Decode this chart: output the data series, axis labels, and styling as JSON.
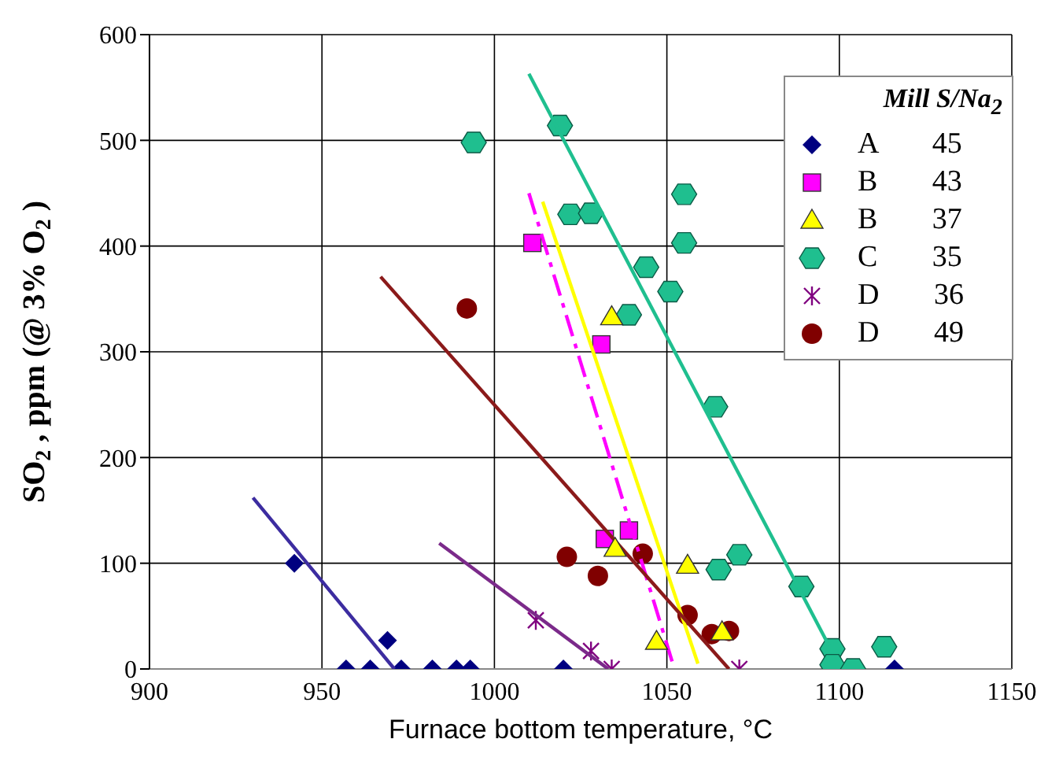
{
  "chart_data": {
    "type": "scatter",
    "xlabel": "Furnace bottom temperature, °C",
    "ylabel": "SO$_{2}$, ppm (@ 3% O$_{2}$)",
    "legend_title": "Mill S/Na$_{2}$",
    "legend": "top right",
    "grid": true,
    "xlim": [
      900,
      1150
    ],
    "xticks": [
      900,
      950,
      1000,
      1050,
      1100,
      1150
    ],
    "ylim": [
      0,
      600
    ],
    "yticks": [
      0,
      100,
      200,
      300,
      400,
      500,
      600
    ],
    "series": [
      {
        "name": "A 45",
        "color": "#000080",
        "marker": "diamond",
        "x": [
          942,
          957,
          964,
          969,
          973,
          982,
          989,
          993,
          1020,
          1116
        ],
        "values": [
          100,
          0,
          0,
          27,
          0,
          0,
          0,
          0,
          0,
          0
        ]
      },
      {
        "name": "B 43",
        "color": "#ff00ff",
        "marker": "square",
        "x": [
          1011,
          1031,
          1032,
          1039
        ],
        "values": [
          403,
          307,
          123,
          131
        ]
      },
      {
        "name": "B 37",
        "color": "#ffff00",
        "marker": "triangle",
        "x": [
          1034,
          1035,
          1056,
          1047,
          1066
        ],
        "values": [
          333,
          114,
          98,
          26,
          35
        ]
      },
      {
        "name": "C 35",
        "color": "#1fbf8f",
        "x": [
          994,
          1019,
          1022,
          1028,
          1055,
          1055,
          1044,
          1051,
          1039,
          1064,
          1065,
          1071,
          1089,
          1098,
          1098,
          1104,
          1113
        ],
        "values": [
          498,
          514,
          430,
          431,
          449,
          403,
          380,
          357,
          335,
          248,
          94,
          108,
          78,
          19,
          4,
          0,
          21
        ]
      },
      {
        "name": "D 36",
        "color": "#800080",
        "marker": "cross",
        "x": [
          1012,
          1028,
          1034,
          1071
        ],
        "values": [
          46,
          17,
          0,
          0
        ]
      },
      {
        "name": "D 49",
        "color": "#800000",
        "marker": "circle",
        "x": [
          992,
          1021,
          1030,
          1043,
          1056,
          1063,
          1068
        ],
        "values": [
          341,
          106,
          88,
          109,
          51,
          33,
          36
        ]
      },
      {
        "type": "line",
        "color": "#3c2ca0",
        "marker": "none",
        "line_style": "solid",
        "x": [
          930,
          971
        ],
        "values": [
          162,
          0
        ]
      },
      {
        "type": "line",
        "color": "#ff00ff",
        "marker": "none",
        "line_style": "dashed",
        "x": [
          1010,
          1052
        ],
        "values": [
          450,
          2
        ]
      },
      {
        "type": "line",
        "color": "#ffff00",
        "marker": "none",
        "line_style": "solid",
        "x": [
          1014,
          1059
        ],
        "values": [
          442,
          5
        ]
      },
      {
        "type": "line",
        "color": "#1fbf8f",
        "marker": "none",
        "line_style": "solid",
        "x": [
          1010,
          1097
        ],
        "values": [
          563,
          22
        ]
      },
      {
        "type": "line",
        "color": "#7b2a8a",
        "marker": "none",
        "line_style": "solid",
        "x": [
          984,
          1033
        ],
        "values": [
          119,
          0
        ]
      },
      {
        "type": "line",
        "color": "#8b1a1a",
        "marker": "none",
        "line_style": "solid",
        "x": [
          967,
          1068
        ],
        "values": [
          371,
          0
        ]
      }
    ]
  }
}
